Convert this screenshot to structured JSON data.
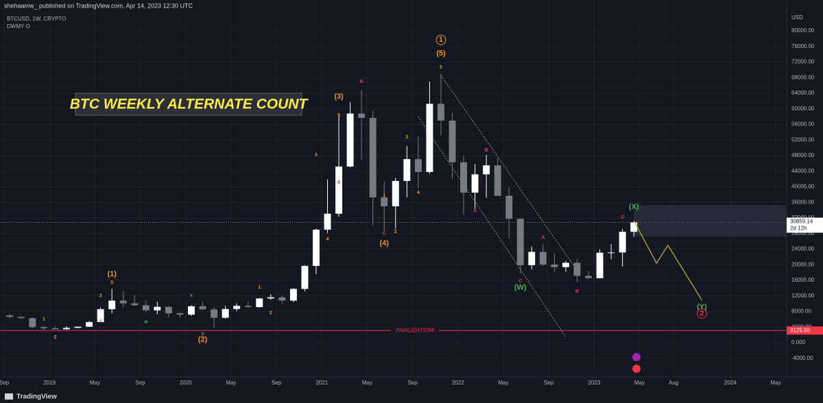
{
  "header": {
    "publisher": "shehaamw_ published on TradingView.com, Apr 14, 2023 12:30 UTC",
    "symbol": "BTCUSD, 1W, CRYPTO",
    "indicator": "DWMY O"
  },
  "footer": {
    "brand": "TradingView"
  },
  "chart_data": {
    "type": "candlestick",
    "title": "BTC WEEKLY ALTERNATE COUNT",
    "y_axis_label": "USD",
    "x": [
      "2018-09",
      "2018-10",
      "2018-11",
      "2018-12",
      "2019-01",
      "2019-02",
      "2019-03",
      "2019-04",
      "2019-05",
      "2019-06",
      "2019-07",
      "2019-08",
      "2019-09",
      "2019-10",
      "2019-11",
      "2019-12",
      "2020-01",
      "2020-02",
      "2020-03",
      "2020-04",
      "2020-05",
      "2020-06",
      "2020-07",
      "2020-08",
      "2020-09",
      "2020-10",
      "2020-11",
      "2020-12",
      "2021-01",
      "2021-02",
      "2021-03",
      "2021-04",
      "2021-05",
      "2021-06",
      "2021-07",
      "2021-08",
      "2021-09",
      "2021-10",
      "2021-11",
      "2021-12",
      "2022-01",
      "2022-02",
      "2022-03",
      "2022-04",
      "2022-05",
      "2022-06",
      "2022-07",
      "2022-08",
      "2022-09",
      "2022-10",
      "2022-11",
      "2022-12",
      "2023-01",
      "2023-02",
      "2023-03",
      "2023-04"
    ],
    "open": [
      7000,
      6600,
      6300,
      4000,
      3700,
      3450,
      3800,
      4100,
      5300,
      8600,
      10800,
      10100,
      9600,
      8300,
      9200,
      7550,
      7200,
      9350,
      8550,
      6400,
      8650,
      9450,
      9150,
      11350,
      11650,
      10800,
      13800,
      19700,
      29000,
      33100,
      45200,
      58800,
      57700,
      37300,
      35000,
      41500,
      47100,
      43800,
      61300,
      57000,
      46300,
      38500,
      43200,
      45500,
      37700,
      31800,
      19900,
      23300,
      20050,
      19400,
      20500,
      17150,
      16550,
      23100,
      23150,
      28450
    ],
    "high": [
      7400,
      6800,
      6500,
      4300,
      4100,
      4200,
      4100,
      5600,
      9000,
      13800,
      13200,
      12300,
      10900,
      10500,
      9500,
      7750,
      9600,
      10500,
      9200,
      9450,
      10100,
      10400,
      11450,
      12450,
      12100,
      14000,
      19900,
      29300,
      41900,
      58300,
      61700,
      64800,
      59500,
      41300,
      42300,
      50500,
      52900,
      67000,
      69000,
      59000,
      48000,
      45800,
      48200,
      47400,
      40000,
      31900,
      24700,
      25200,
      22800,
      21000,
      21500,
      18400,
      23900,
      25300,
      29200,
      31000
    ],
    "low": [
      6200,
      6300,
      3700,
      3200,
      3400,
      3350,
      3700,
      4050,
      5300,
      7500,
      9100,
      9400,
      7700,
      7300,
      6500,
      6450,
      6850,
      8500,
      3850,
      6150,
      8100,
      8900,
      8950,
      11000,
      9900,
      10400,
      13200,
      17600,
      28100,
      32300,
      45000,
      47000,
      30000,
      28800,
      29300,
      37300,
      39600,
      43300,
      53300,
      42000,
      32900,
      34300,
      37200,
      37700,
      26700,
      17600,
      18800,
      19600,
      18150,
      18200,
      15500,
      16300,
      16500,
      21400,
      19550,
      27200
    ],
    "close": [
      6600,
      6300,
      4000,
      3700,
      3450,
      3800,
      4100,
      5300,
      8600,
      10800,
      10100,
      9600,
      8300,
      9200,
      7550,
      7200,
      9350,
      8550,
      6400,
      8650,
      9450,
      9150,
      11350,
      11650,
      10800,
      13800,
      19700,
      29000,
      33100,
      45200,
      58800,
      57700,
      37300,
      35000,
      41500,
      47100,
      43800,
      61300,
      57000,
      46300,
      38500,
      43200,
      45500,
      37700,
      31800,
      19900,
      23300,
      20050,
      19400,
      20500,
      17150,
      16550,
      23100,
      23150,
      28450,
      30859.14
    ],
    "up_color": "#ffffff",
    "down_color": "#787b86",
    "xlim": [
      "2018-09",
      "2024-05"
    ],
    "xticks": [
      {
        "value": "2018-09",
        "label": "Sep"
      },
      {
        "value": "2019-01",
        "label": "2019"
      },
      {
        "value": "2019-05",
        "label": "May"
      },
      {
        "value": "2019-09",
        "label": "Sep"
      },
      {
        "value": "2020-01",
        "label": "2020"
      },
      {
        "value": "2020-05",
        "label": "May"
      },
      {
        "value": "2020-09",
        "label": "Sep"
      },
      {
        "value": "2021-01",
        "label": "2021"
      },
      {
        "value": "2021-05",
        "label": "May"
      },
      {
        "value": "2021-09",
        "label": "Sep"
      },
      {
        "value": "2022-01",
        "label": "2022"
      },
      {
        "value": "2022-05",
        "label": "May"
      },
      {
        "value": "2022-09",
        "label": "Sep"
      },
      {
        "value": "2023-01",
        "label": "2023"
      },
      {
        "value": "2023-05",
        "label": "May"
      },
      {
        "value": "2023-08",
        "label": "Aug"
      },
      {
        "value": "2024-01",
        "label": "2024"
      },
      {
        "value": "2024-05",
        "label": "May"
      }
    ],
    "ylim": [
      -6400,
      86000
    ],
    "yticks": [
      {
        "value": -4000,
        "label": "-4000.00"
      },
      {
        "value": 0,
        "label": "0.000"
      },
      {
        "value": 4000,
        "label": "4000.00"
      },
      {
        "value": 8000,
        "label": "8000.00"
      },
      {
        "value": 12000,
        "label": "12000.00"
      },
      {
        "value": 16000,
        "label": "16000.00"
      },
      {
        "value": 20000,
        "label": "20000.00"
      },
      {
        "value": 24000,
        "label": "24000.00"
      },
      {
        "value": 28000,
        "label": "28000.00"
      },
      {
        "value": 32000,
        "label": "32000.00"
      },
      {
        "value": 36000,
        "label": "36000.00"
      },
      {
        "value": 40000,
        "label": "40000.00"
      },
      {
        "value": 44000,
        "label": "44000.00"
      },
      {
        "value": 48000,
        "label": "48000.00"
      },
      {
        "value": 52000,
        "label": "52000.00"
      },
      {
        "value": 56000,
        "label": "56000.00"
      },
      {
        "value": 60000,
        "label": "60000.00"
      },
      {
        "value": 64000,
        "label": "64000.00"
      },
      {
        "value": 68000,
        "label": "68000.00"
      },
      {
        "value": 72000,
        "label": "72000.00"
      },
      {
        "value": 76000,
        "label": "76000.00"
      },
      {
        "value": 80000,
        "label": "80000.00"
      }
    ],
    "grid": true,
    "last_price": {
      "value": 30859.14,
      "label": "30859.14",
      "countdown": "2d 12h"
    },
    "invalidation": {
      "value": 3125.9,
      "label": "3125.90",
      "text": "INVALIDATION!",
      "color": "#f23645"
    },
    "zone": {
      "from": "2023-04",
      "range": [
        27200,
        35300
      ]
    },
    "trendlines": [
      {
        "x": [
          "2021-11",
          "2022-11"
        ],
        "values": [
          68600,
          18500
        ]
      },
      {
        "x": [
          "2021-09",
          "2022-10"
        ],
        "values": [
          58000,
          1400
        ]
      }
    ],
    "projection": {
      "color": "#c9b92a",
      "x": [
        "2023-04",
        "2023-06",
        "2023-07",
        "2023-10"
      ],
      "values": [
        31300,
        20400,
        25000,
        10900
      ]
    },
    "annotations": [
      {
        "text": "1",
        "x": "2018-12",
        "y": 6000,
        "color": "#f7931a"
      },
      {
        "text": "2",
        "x": "2019-01",
        "y": 1400,
        "color": "#f7931a"
      },
      {
        "text": "3",
        "x": "2019-05",
        "y": 12000,
        "color": "#f7931a"
      },
      {
        "text": "(1)",
        "x": "2019-06",
        "y": 17600,
        "color": "#f7931a"
      },
      {
        "text": "5",
        "x": "2019-06",
        "y": 15400,
        "color": "#f7931a"
      },
      {
        "text": "4",
        "x": "2019-05",
        "y": 5600,
        "color": "#f7931a"
      },
      {
        "text": "w",
        "x": "2019-09",
        "y": 5300,
        "color": "#4caf50"
      },
      {
        "text": "x",
        "x": "2020-01",
        "y": 12100,
        "color": "#4caf50"
      },
      {
        "text": "y",
        "x": "2020-02",
        "y": 2300,
        "color": "#4caf50"
      },
      {
        "text": "(2)",
        "x": "2020-02",
        "y": 800,
        "color": "#f7931a"
      },
      {
        "text": "1",
        "x": "2020-07",
        "y": 14200,
        "color": "#f7931a"
      },
      {
        "text": "2",
        "x": "2020-08",
        "y": 7600,
        "color": "#f7931a"
      },
      {
        "text": "3",
        "x": "2020-12",
        "y": 48200,
        "color": "#f7931a"
      },
      {
        "text": "4",
        "x": "2021-01",
        "y": 26500,
        "color": "#f7931a"
      },
      {
        "text": "(3)",
        "x": "2021-02",
        "y": 63100,
        "color": "#f7931a"
      },
      {
        "text": "5",
        "x": "2021-02",
        "y": 58400,
        "color": "#f7931a"
      },
      {
        "text": "A",
        "x": "2021-02",
        "y": 41100,
        "color": "#f23645"
      },
      {
        "text": "B",
        "x": "2021-04",
        "y": 67000,
        "color": "#f23645"
      },
      {
        "text": "1",
        "x": "2021-06",
        "y": 37800,
        "color": "#f7931a"
      },
      {
        "text": "C",
        "x": "2021-06",
        "y": 28000,
        "color": "#f23645"
      },
      {
        "text": "(4)",
        "x": "2021-06",
        "y": 25500,
        "color": "#f7931a"
      },
      {
        "text": "2",
        "x": "2021-07",
        "y": 28500,
        "color": "#f7931a"
      },
      {
        "text": "3",
        "x": "2021-08",
        "y": 52700,
        "color": "#f7931a"
      },
      {
        "text": "4",
        "x": "2021-09",
        "y": 38500,
        "color": "#f7931a"
      },
      {
        "text": "1",
        "x": "2021-11",
        "y": 77700,
        "color": "#f7931a",
        "circled": true
      },
      {
        "text": "(5)",
        "x": "2021-11",
        "y": 74200,
        "color": "#f7931a"
      },
      {
        "text": "5",
        "x": "2021-11",
        "y": 70700,
        "color": "#f7931a"
      },
      {
        "text": "B",
        "x": "2022-03",
        "y": 49400,
        "color": "#f23645"
      },
      {
        "text": "A",
        "x": "2022-02",
        "y": 33800,
        "color": "#f23645"
      },
      {
        "text": "A",
        "x": "2022-08",
        "y": 27000,
        "color": "#f23645"
      },
      {
        "text": "C",
        "x": "2022-06",
        "y": 15800,
        "color": "#f23645"
      },
      {
        "text": "(W)",
        "x": "2022-06",
        "y": 14100,
        "color": "#4caf50"
      },
      {
        "text": "B",
        "x": "2022-11",
        "y": 13200,
        "color": "#f23645"
      },
      {
        "text": "(X)",
        "x": "2023-04",
        "y": 34800,
        "color": "#4caf50"
      },
      {
        "text": "C",
        "x": "2023-03",
        "y": 32200,
        "color": "#f23645"
      },
      {
        "text": "(Y)",
        "x": "2023-10",
        "y": 9100,
        "color": "#4caf50"
      },
      {
        "text": "2",
        "x": "2023-10",
        "y": 7500,
        "color": "#f23645",
        "circled": true
      }
    ]
  }
}
